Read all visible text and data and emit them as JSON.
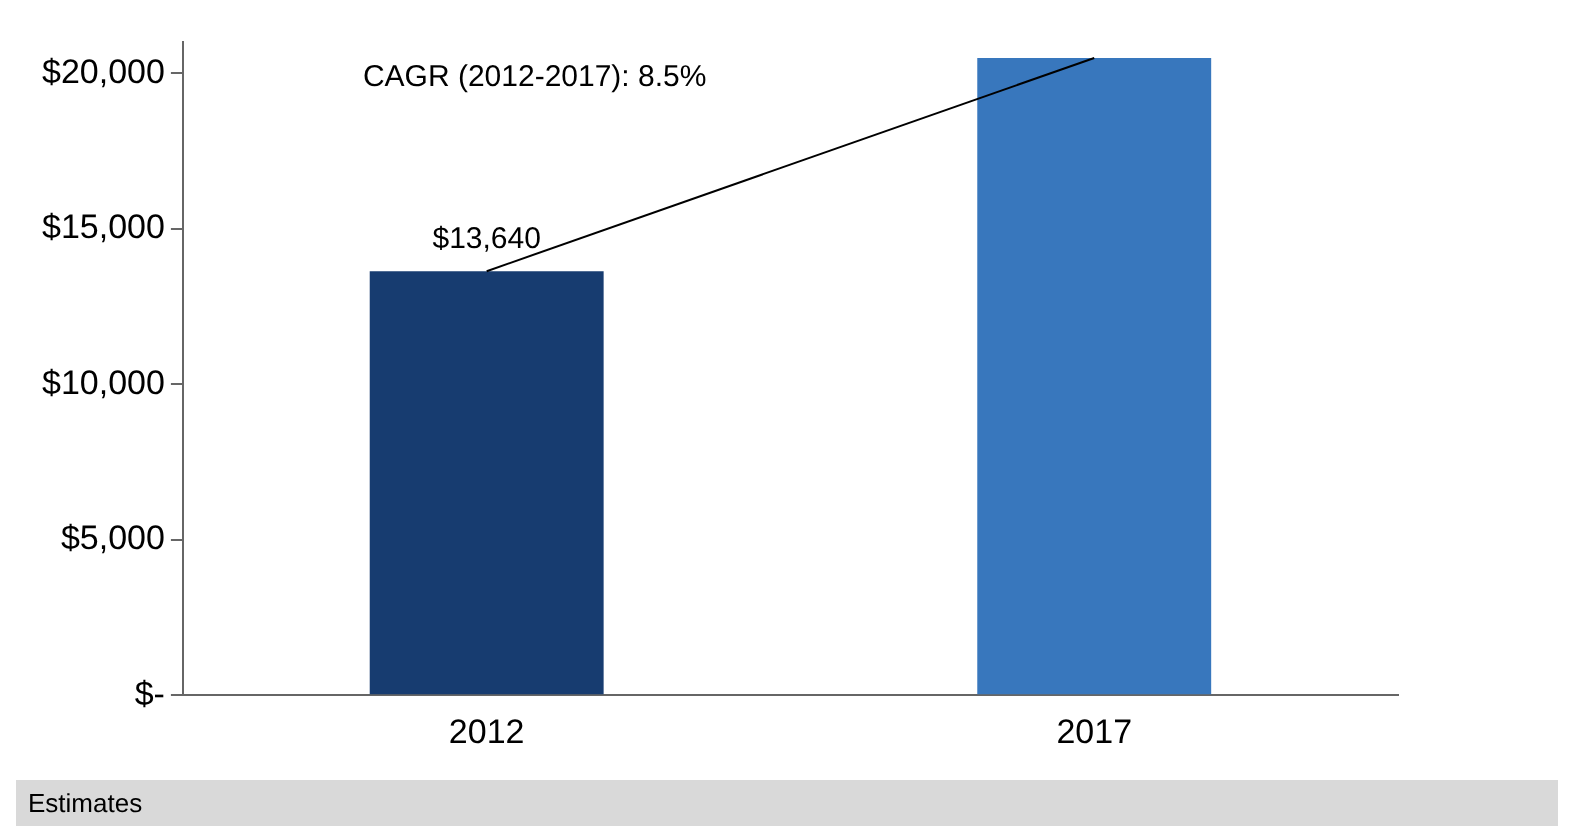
{
  "chart_data": {
    "type": "bar",
    "categories": [
      "2012",
      "2017"
    ],
    "series": [
      {
        "colors": [
          "#173c70",
          "#3877bd"
        ],
        "values": [
          13640,
          20500
        ],
        "value_labels": [
          "$13,640",
          null
        ]
      },
      {
        "type": "line",
        "values": [
          13640,
          20500
        ],
        "color": "#000000",
        "marker": "none"
      }
    ],
    "ylim": [
      0,
      21000
    ],
    "yticks": [
      {
        "value": 0,
        "label": "$-"
      },
      {
        "value": 5000,
        "label": "$5,000"
      },
      {
        "value": 10000,
        "label": "$10,000"
      },
      {
        "value": 15000,
        "label": "$15,000"
      },
      {
        "value": 20000,
        "label": "$20,000"
      }
    ],
    "annotations": [
      "CAGR (2012-2017): 8.5%",
      "Estimates"
    ],
    "grid": false,
    "legend": false
  }
}
